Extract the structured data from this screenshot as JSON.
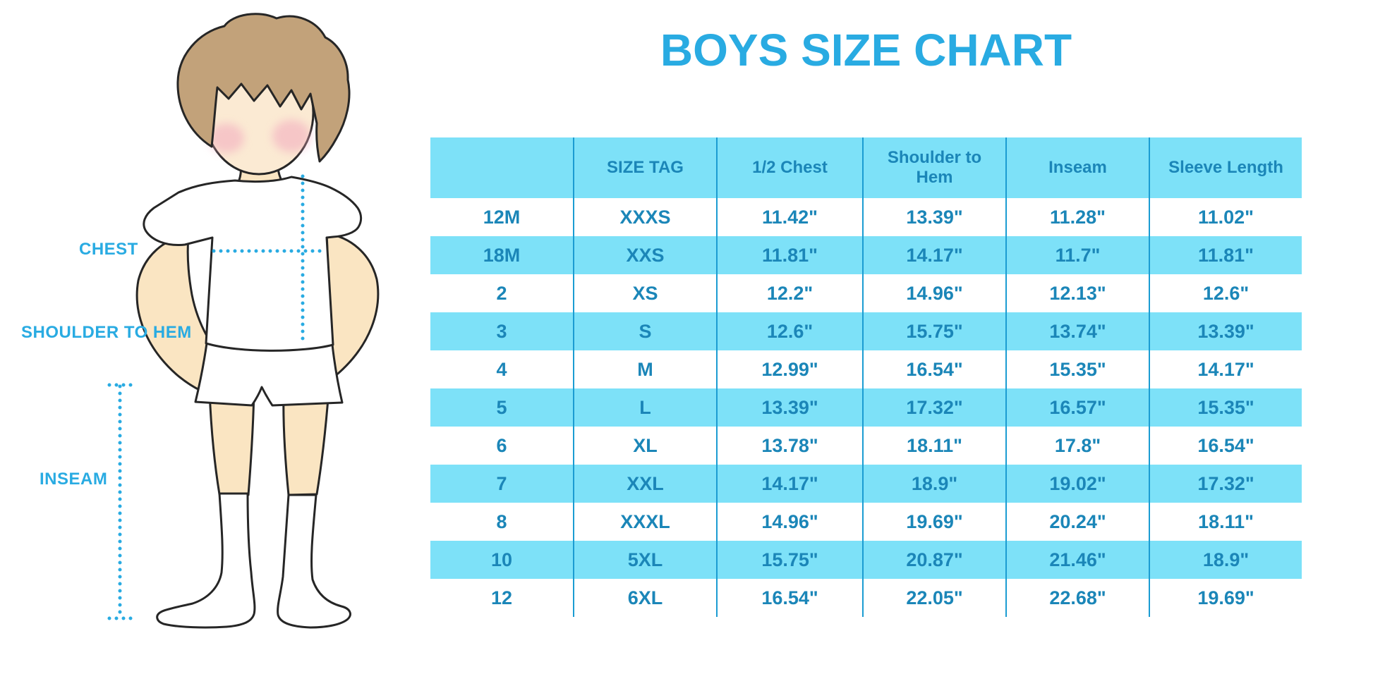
{
  "title": "BOYS SIZE CHART",
  "figure": {
    "labels": {
      "chest": "CHEST",
      "shoulder_to_hem": "SHOULDER TO HEM",
      "inseam": "INSEAM"
    }
  },
  "colors": {
    "accent_blue": "#29ABE2",
    "table_text": "#1B86B8",
    "row_fill": "#7DE1F8",
    "divider": "#1B9CD2",
    "skin": "#FAE5C2",
    "skin_light": "#FBEAD3",
    "hair": "#C2A27A",
    "blush": "#F2A9BE",
    "outline": "#262626"
  },
  "chart_data": {
    "type": "table",
    "title": "BOYS SIZE CHART",
    "columns": [
      "",
      "SIZE TAG",
      "1/2 Chest",
      "Shoulder to Hem",
      "Inseam",
      "Sleeve Length"
    ],
    "rows": [
      [
        "12M",
        "XXXS",
        "11.42\"",
        "13.39\"",
        "11.28\"",
        "11.02\""
      ],
      [
        "18M",
        "XXS",
        "11.81\"",
        "14.17\"",
        "11.7\"",
        "11.81\""
      ],
      [
        "2",
        "XS",
        "12.2\"",
        "14.96\"",
        "12.13\"",
        "12.6\""
      ],
      [
        "3",
        "S",
        "12.6\"",
        "15.75\"",
        "13.74\"",
        "13.39\""
      ],
      [
        "4",
        "M",
        "12.99\"",
        "16.54\"",
        "15.35\"",
        "14.17\""
      ],
      [
        "5",
        "L",
        "13.39\"",
        "17.32\"",
        "16.57\"",
        "15.35\""
      ],
      [
        "6",
        "XL",
        "13.78\"",
        "18.11\"",
        "17.8\"",
        "16.54\""
      ],
      [
        "7",
        "XXL",
        "14.17\"",
        "18.9\"",
        "19.02\"",
        "17.32\""
      ],
      [
        "8",
        "XXXL",
        "14.96\"",
        "19.69\"",
        "20.24\"",
        "18.11\""
      ],
      [
        "10",
        "5XL",
        "15.75\"",
        "20.87\"",
        "21.46\"",
        "18.9\""
      ],
      [
        "12",
        "6XL",
        "16.54\"",
        "22.05\"",
        "22.68\"",
        "19.69\""
      ]
    ]
  }
}
